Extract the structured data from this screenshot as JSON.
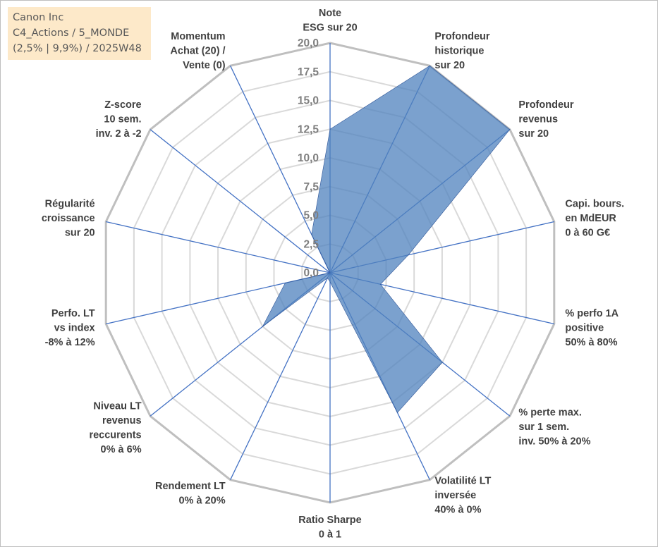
{
  "info": {
    "line1": "Canon Inc",
    "line2": "C4_Actions / 5_MONDE",
    "line3": "(2,5% | 9,9%) / 2025W48"
  },
  "chart_data": {
    "type": "radar",
    "title": "",
    "rmin": 0,
    "rmax": 20,
    "ticks": [
      "0,0",
      "2,5",
      "5,0",
      "7,5",
      "10,0",
      "12,5",
      "15,0",
      "17,5",
      "20,0"
    ],
    "grid": true,
    "categories": [
      [
        "Note",
        "ESG sur 20"
      ],
      [
        "Profondeur",
        "historique",
        "sur 20"
      ],
      [
        "Profondeur",
        "revenus",
        "sur 20"
      ],
      [
        "Capi. bours.",
        "en MdEUR",
        "0 à 60 G€"
      ],
      [
        "% perfo 1A",
        "positive",
        "50% à 80%"
      ],
      [
        "% perte max.",
        "sur 1 sem.",
        "inv. 50% à 20%"
      ],
      [
        "Volatilité LT",
        "inversée",
        "40% à 0%"
      ],
      [
        "Ratio Sharpe",
        "0 à 1"
      ],
      [
        "Rendement LT",
        "0% à 20%"
      ],
      [
        "Niveau LT",
        "revenus",
        "reccurents",
        "0% à 6%"
      ],
      [
        "Perfo. LT",
        "vs index",
        "-8% à 12%"
      ],
      [
        "Régularité",
        "croissance",
        "sur 20"
      ],
      [
        "Z-score",
        "10 sem.",
        "inv. 2 à -2"
      ],
      [
        "Momentum",
        "Achat (20) /",
        "Vente (0)"
      ]
    ],
    "series": [
      {
        "values": [
          12.5,
          20.0,
          20.0,
          7.0,
          4.5,
          12.5,
          13.5,
          0.8,
          0.5,
          7.5,
          4.0,
          0.0,
          0.0,
          3.7
        ],
        "color": "#4f81bd"
      }
    ]
  }
}
